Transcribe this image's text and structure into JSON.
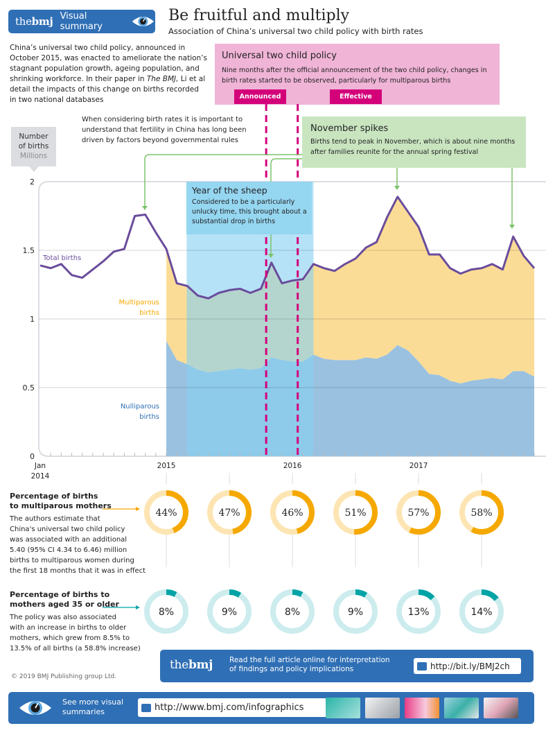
{
  "header": {
    "logo": {
      "prefix": "the",
      "bold": "bmj"
    },
    "badge_label": "Visual summary",
    "badge_icon": "eye-icon",
    "title": "Be fruitful and multiply",
    "subtitle": "Association of China’s universal two child policy with birth rates"
  },
  "intro": {
    "lines": [
      "China’s universal two child policy, announced in",
      "October 2015, was enacted to ameliorate the nation’s",
      "stagnant population growth, ageing population, and",
      "shrinking workforce. In their paper in ",
      "detail the impacts of this change on births recorded",
      "in two national databases"
    ],
    "italic": "The BMJ,",
    "line4_tail": " Li et al"
  },
  "note": "When considering birth rates it is important to understand that fertility in China has long been driven by factors beyond governmental rules",
  "policy_box": {
    "heading": "Universal two child policy",
    "text": "Nine months after the official announcement of the two child policy, changes in birth rates started to be observed, particularly for multiparous births",
    "announced_label": "Announced",
    "effective_label": "Effective"
  },
  "november_box": {
    "heading": "November spikes",
    "text": "Births tend to peak in November, which is about nine months after families reunite for the annual spring festival"
  },
  "sheep_box": {
    "heading": "Year of the sheep",
    "text": "Considered to be a particularly unlucky time, this brought about a substantial drop in births"
  },
  "y_box": {
    "line1": "Number",
    "line2": "of births",
    "unit": "Millions"
  },
  "chart_data": {
    "type": "area",
    "title": "Number of births",
    "ylabel": "Number of births (Millions)",
    "xlabel": "",
    "ylim": [
      0,
      2
    ],
    "yticks": [
      "0",
      "0.5",
      "1",
      "1.5",
      "2"
    ],
    "xticks": [
      {
        "month_index": 0,
        "label": "Jan",
        "label2": "2014"
      },
      {
        "month_index": 12,
        "label": "2015"
      },
      {
        "month_index": 24,
        "label": "2016"
      },
      {
        "month_index": 36,
        "label": "2017"
      }
    ],
    "grid": true,
    "x_start": "Jan 2014",
    "x_end": "Dec 2017",
    "series": [
      {
        "name": "Total births",
        "kind": "line",
        "color": "#6a4c9c",
        "start_index": 0,
        "values": [
          1.39,
          1.37,
          1.4,
          1.32,
          1.3,
          1.36,
          1.42,
          1.49,
          1.51,
          1.75,
          1.76,
          1.63,
          1.51,
          1.26,
          1.24,
          1.17,
          1.15,
          1.19,
          1.21,
          1.22,
          1.19,
          1.22,
          1.41,
          1.26,
          1.28,
          1.29,
          1.4,
          1.37,
          1.35,
          1.4,
          1.44,
          1.52,
          1.56,
          1.74,
          1.89,
          1.78,
          1.67,
          1.47,
          1.47,
          1.37,
          1.33,
          1.36,
          1.37,
          1.4,
          1.36,
          1.6,
          1.46,
          1.37
        ]
      },
      {
        "name": "Multiparous births",
        "label": [
          "Multiparous",
          "births"
        ],
        "kind": "area-top",
        "color": "#fbdc96",
        "start_index": 12,
        "note": "Stacked: spans from nulliparous value up to total births"
      },
      {
        "name": "Nulliparous births",
        "label": [
          "Nulliparous",
          "births"
        ],
        "kind": "area",
        "color": "#9ac1e0",
        "start_index": 12,
        "values": [
          0.84,
          0.7,
          0.67,
          0.63,
          0.61,
          0.62,
          0.63,
          0.64,
          0.63,
          0.64,
          0.72,
          0.7,
          0.69,
          0.69,
          0.74,
          0.71,
          0.7,
          0.7,
          0.7,
          0.72,
          0.71,
          0.74,
          0.81,
          0.77,
          0.69,
          0.6,
          0.59,
          0.55,
          0.53,
          0.55,
          0.56,
          0.57,
          0.56,
          0.62,
          0.62,
          0.58
        ]
      }
    ],
    "highlight_band": {
      "label": "Year of the sheep",
      "from_index": 14,
      "to_index": 26,
      "color": "#87d0f0"
    },
    "events": [
      {
        "label": "Announced",
        "month_index": 21.5,
        "color": "#d4007a"
      },
      {
        "label": "Effective",
        "month_index": 24.5,
        "color": "#d4007a"
      }
    ],
    "annotation_arrows": [
      {
        "target": "Nov 2014",
        "month_index": 10,
        "group": "note"
      },
      {
        "target": "Nov 2015",
        "month_index": 22,
        "group": "note"
      },
      {
        "target": "Nov 2016",
        "month_index": 34,
        "group": "november"
      },
      {
        "target": "Nov 2017",
        "month_index": 45,
        "group": "november"
      }
    ]
  },
  "multiparous_section": {
    "heading_lines": [
      "Percentage of births",
      "to multiparous mothers"
    ],
    "text_lines": [
      "The authors estimate that",
      "China's universal two child policy",
      "was associated with an additional",
      "5.40 (95% CI 4.34 to 6.46) million",
      "births to multiparous women during",
      "the first 18 months that it was in effect"
    ],
    "color": "#f5a800",
    "track_color": "#fde5b3",
    "values": [
      44,
      47,
      46,
      51,
      57,
      58
    ],
    "labels": [
      "44%",
      "47%",
      "46%",
      "51%",
      "57%",
      "58%"
    ]
  },
  "older_section": {
    "heading_lines": [
      "Percentage of births to",
      "mothers aged 35 or older"
    ],
    "text_lines": [
      "The policy was also associated",
      "with an increase in births to older",
      "mothers, which grew from 8.5% to",
      "13.5% of all births (a 58.8% increase)"
    ],
    "color": "#00a3a6",
    "track_color": "#ccecee",
    "values": [
      8,
      9,
      8,
      9,
      13,
      14
    ],
    "labels": [
      "8%",
      "9%",
      "8%",
      "9%",
      "13%",
      "14%"
    ]
  },
  "cta": {
    "text_line1": "Read the full article online for interpretation",
    "text_line2": "of findings and policy implications",
    "url": "http://bit.ly/BMJ2ch"
  },
  "copyright": "© 2019 BMJ Publishing group Ltd.",
  "footer": {
    "text_line1": "See more visual",
    "text_line2": "summaries",
    "url": "http://www.bmj.com/infographics",
    "thumbnails": [
      "infographic-thumbnail-1",
      "infographic-thumbnail-2",
      "infographic-thumbnail-3",
      "infographic-thumbnail-4",
      "infographic-thumbnail-5"
    ]
  }
}
